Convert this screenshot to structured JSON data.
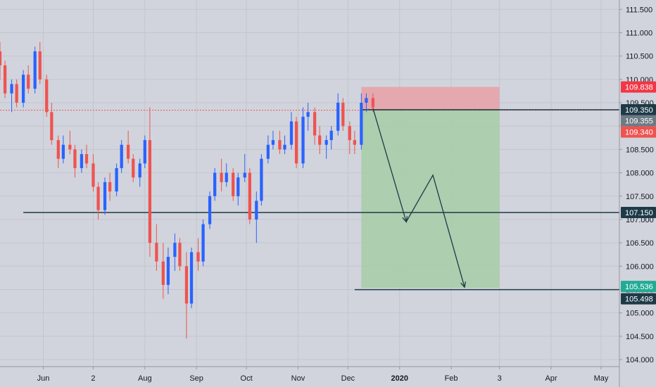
{
  "chart_data": {
    "type": "candlestick",
    "y_axis": {
      "ylim": [
        103.85,
        111.7
      ],
      "ticks": [
        "111.500",
        "111.000",
        "110.500",
        "110.000",
        "109.500",
        "109.000",
        "108.500",
        "108.000",
        "107.500",
        "107.000",
        "106.500",
        "106.000",
        "105.500",
        "105.000",
        "104.500",
        "104.000"
      ],
      "position": "right"
    },
    "x_axis": {
      "tick_labels": [
        "Jun",
        "2",
        "Aug",
        "Sep",
        "Oct",
        "Nov",
        "Dec",
        "2020",
        "Feb",
        "3",
        "Apr",
        "May"
      ],
      "tick_dates": [
        "2019-06-01",
        "2019-07-01",
        "2019-08-01",
        "2019-09-01",
        "2019-10-01",
        "2019-11-01",
        "2019-12-01",
        "2020-01-01",
        "2020-02-01",
        "2020-03-01",
        "2020-04-01",
        "2020-05-01"
      ],
      "bold_labels": [
        "2020"
      ],
      "range": [
        "2019-05-06",
        "2020-05-12"
      ]
    },
    "grid": true,
    "colors": {
      "background": "#d1d4dc",
      "grid": "#c3c6ce",
      "up_candle": "#2962ff",
      "down_candle": "#ef5350",
      "level_line": "#1e3a47",
      "stop_zone": "#e5a3a8",
      "target_zone": "#a9cdaa",
      "last_price_line": "#ef5350",
      "arrow": "#1e3a47"
    },
    "series": [
      {
        "type": "ohlc",
        "values": [
          [
            "2019-05-06",
            110.6,
            110.8,
            110.0,
            110.3
          ],
          [
            "2019-05-09",
            110.3,
            110.4,
            109.6,
            109.7
          ],
          [
            "2019-05-13",
            109.7,
            110.0,
            109.3,
            109.9
          ],
          [
            "2019-05-16",
            109.9,
            110.0,
            109.4,
            109.5
          ],
          [
            "2019-05-20",
            109.5,
            110.2,
            109.4,
            110.1
          ],
          [
            "2019-05-23",
            110.1,
            110.3,
            109.7,
            109.8
          ],
          [
            "2019-05-27",
            109.8,
            110.7,
            109.7,
            110.6
          ],
          [
            "2019-05-30",
            110.6,
            110.8,
            109.9,
            110.0
          ],
          [
            "2019-06-03",
            110.0,
            110.1,
            109.2,
            109.3
          ],
          [
            "2019-06-06",
            109.3,
            109.5,
            108.6,
            108.7
          ],
          [
            "2019-06-10",
            108.7,
            108.8,
            108.1,
            108.3
          ],
          [
            "2019-06-13",
            108.3,
            108.8,
            108.2,
            108.6
          ],
          [
            "2019-06-17",
            108.6,
            108.9,
            108.4,
            108.5
          ],
          [
            "2019-06-20",
            108.5,
            108.6,
            107.9,
            108.1
          ],
          [
            "2019-06-24",
            108.1,
            108.5,
            108.0,
            108.4
          ],
          [
            "2019-06-27",
            108.4,
            108.6,
            108.1,
            108.2
          ],
          [
            "2019-07-01",
            108.2,
            108.4,
            107.6,
            107.7
          ],
          [
            "2019-07-04",
            107.7,
            107.8,
            107.0,
            107.2
          ],
          [
            "2019-07-08",
            107.2,
            107.9,
            107.1,
            107.8
          ],
          [
            "2019-07-11",
            107.8,
            108.0,
            107.4,
            107.6
          ],
          [
            "2019-07-15",
            107.6,
            108.2,
            107.5,
            108.1
          ],
          [
            "2019-07-18",
            108.1,
            108.7,
            108.0,
            108.6
          ],
          [
            "2019-07-22",
            108.6,
            108.9,
            108.2,
            108.3
          ],
          [
            "2019-07-25",
            108.3,
            108.4,
            107.8,
            107.9
          ],
          [
            "2019-07-29",
            107.9,
            108.3,
            107.7,
            108.2
          ],
          [
            "2019-08-01",
            108.2,
            108.8,
            108.1,
            108.7
          ],
          [
            "2019-08-04",
            108.7,
            109.4,
            106.2,
            106.5
          ],
          [
            "2019-08-08",
            106.5,
            106.9,
            105.9,
            106.1
          ],
          [
            "2019-08-12",
            106.1,
            106.5,
            105.3,
            105.6
          ],
          [
            "2019-08-15",
            105.6,
            106.4,
            105.4,
            106.2
          ],
          [
            "2019-08-19",
            106.2,
            106.7,
            105.9,
            106.5
          ],
          [
            "2019-08-22",
            106.5,
            106.6,
            105.9,
            106.0
          ],
          [
            "2019-08-26",
            106.0,
            106.3,
            104.45,
            105.2
          ],
          [
            "2019-08-29",
            105.2,
            106.4,
            105.1,
            106.3
          ],
          [
            "2019-09-02",
            106.3,
            106.6,
            105.9,
            106.1
          ],
          [
            "2019-09-05",
            106.1,
            107.0,
            106.0,
            106.9
          ],
          [
            "2019-09-09",
            106.9,
            107.6,
            106.8,
            107.5
          ],
          [
            "2019-09-12",
            107.5,
            108.1,
            107.4,
            108.0
          ],
          [
            "2019-09-16",
            108.0,
            108.3,
            107.6,
            107.8
          ],
          [
            "2019-09-19",
            107.8,
            108.2,
            107.7,
            108.0
          ],
          [
            "2019-09-23",
            108.0,
            108.1,
            107.4,
            107.5
          ],
          [
            "2019-09-26",
            107.5,
            108.0,
            107.3,
            107.9
          ],
          [
            "2019-09-30",
            107.9,
            108.4,
            107.8,
            108.0
          ],
          [
            "2019-10-03",
            108.0,
            108.1,
            106.9,
            107.0
          ],
          [
            "2019-10-07",
            107.0,
            107.6,
            106.5,
            107.4
          ],
          [
            "2019-10-10",
            107.4,
            108.4,
            107.3,
            108.3
          ],
          [
            "2019-10-14",
            108.3,
            108.8,
            108.2,
            108.6
          ],
          [
            "2019-10-17",
            108.6,
            108.9,
            108.5,
            108.7
          ],
          [
            "2019-10-21",
            108.7,
            108.9,
            108.4,
            108.5
          ],
          [
            "2019-10-24",
            108.5,
            108.8,
            108.4,
            108.6
          ],
          [
            "2019-10-28",
            108.6,
            109.3,
            108.5,
            109.1
          ],
          [
            "2019-10-31",
            109.1,
            109.2,
            108.1,
            108.2
          ],
          [
            "2019-11-04",
            108.2,
            109.4,
            108.1,
            109.2
          ],
          [
            "2019-11-07",
            109.2,
            109.5,
            108.9,
            109.3
          ],
          [
            "2019-11-11",
            109.3,
            109.4,
            108.6,
            108.8
          ],
          [
            "2019-11-14",
            108.8,
            109.0,
            108.4,
            108.6
          ],
          [
            "2019-11-18",
            108.6,
            108.8,
            108.3,
            108.7
          ],
          [
            "2019-11-21",
            108.7,
            109.0,
            108.5,
            108.9
          ],
          [
            "2019-11-25",
            108.9,
            109.7,
            108.8,
            109.5
          ],
          [
            "2019-11-28",
            109.5,
            109.6,
            108.9,
            109.0
          ],
          [
            "2019-12-02",
            109.0,
            109.1,
            108.4,
            108.7
          ],
          [
            "2019-12-05",
            108.7,
            108.9,
            108.4,
            108.6
          ],
          [
            "2019-12-09",
            108.6,
            109.7,
            108.5,
            109.5
          ],
          [
            "2019-12-12",
            109.5,
            109.7,
            109.3,
            109.6
          ],
          [
            "2019-12-16",
            109.6,
            109.7,
            109.3,
            109.4
          ]
        ]
      }
    ],
    "levels": [
      {
        "value": 107.15,
        "label": "107.150",
        "color": "#1e3a47"
      },
      {
        "value": 109.35,
        "label": "109.350",
        "color": "#1e3a47"
      }
    ],
    "short_position": {
      "entry": 109.355,
      "stop": 109.838,
      "target": 105.536,
      "start_date": "2019-12-09",
      "end_date": "2020-03-01",
      "entry_label": "109.355",
      "stop_label": "109.838",
      "target_label": "105.536"
    },
    "target_line": {
      "value": 105.498,
      "label": "105.498",
      "start_date": "2019-12-05"
    },
    "last_price": {
      "value": 109.34,
      "label": "109.340"
    },
    "projection_path": [
      [
        "2019-12-16",
        109.38
      ],
      [
        "2020-01-05",
        106.95
      ],
      [
        "2020-01-21",
        107.95
      ],
      [
        "2020-02-09",
        105.55
      ]
    ]
  }
}
